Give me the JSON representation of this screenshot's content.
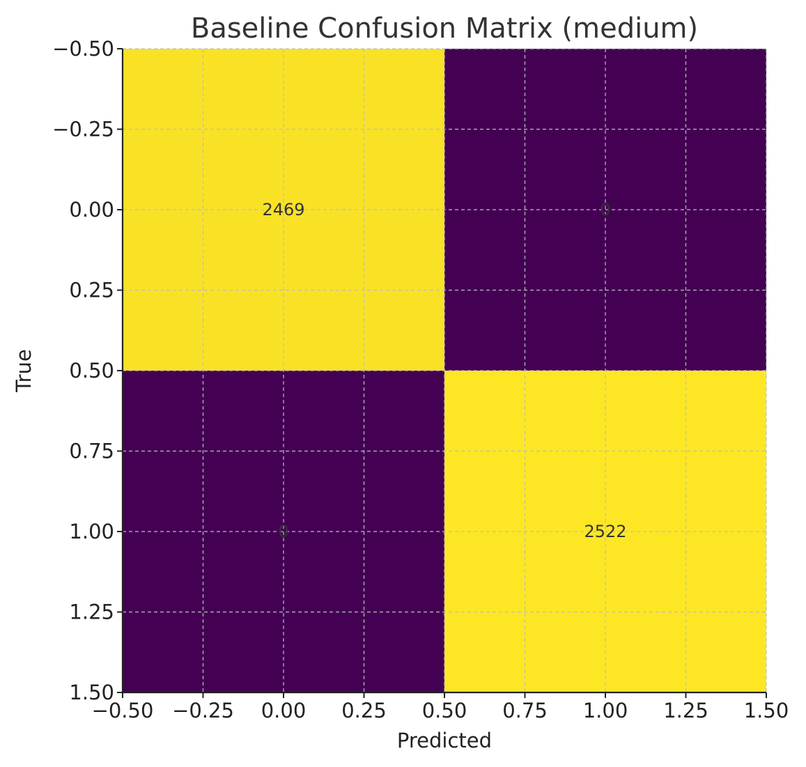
{
  "chart_data": {
    "type": "heatmap",
    "title": "Baseline Confusion Matrix (medium)",
    "xlabel": "Predicted",
    "ylabel": "True",
    "xlim": [
      -0.5,
      1.5
    ],
    "ylim": [
      1.5,
      -0.5
    ],
    "x_ticks": [
      "−0.50",
      "−0.25",
      "0.00",
      "0.25",
      "0.50",
      "0.75",
      "1.00",
      "1.25",
      "1.50"
    ],
    "y_ticks": [
      "−0.50",
      "−0.25",
      "0.00",
      "0.25",
      "0.50",
      "0.75",
      "1.00",
      "1.25",
      "1.50"
    ],
    "grid": true,
    "colormap": "viridis",
    "matrix": [
      [
        2469,
        0
      ],
      [
        0,
        2522
      ]
    ],
    "cell_labels": [
      [
        "2469",
        "0"
      ],
      [
        "0",
        "2522"
      ]
    ],
    "colors": {
      "low": "#440154",
      "high": "#fde725"
    }
  }
}
